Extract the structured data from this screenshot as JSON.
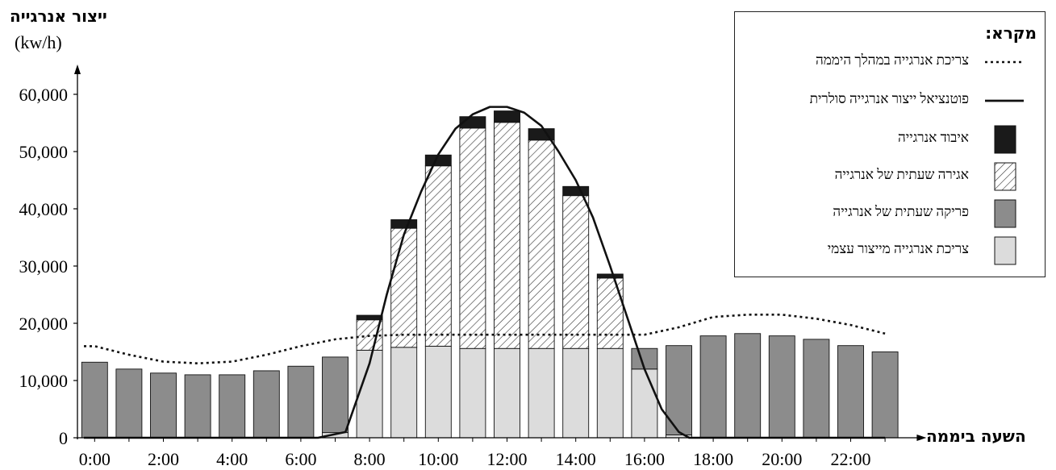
{
  "chart_data": {
    "type": "bar",
    "y_axis_title": "ייצור אנרגייה",
    "y_axis_unit": "(kw/h)",
    "x_axis_title": "השעה ביממה",
    "ylim": [
      0,
      60000
    ],
    "y_ticks": [
      "0",
      "10,000",
      "20,000",
      "30,000",
      "40,000",
      "50,000",
      "60,000"
    ],
    "x_ticks": [
      "0:00",
      "2:00",
      "4:00",
      "6:00",
      "8:00",
      "10:00",
      "12:00",
      "14:00",
      "16:00",
      "18:00",
      "20:00",
      "22:00"
    ],
    "hours": [
      0,
      1,
      2,
      3,
      4,
      5,
      6,
      7,
      8,
      9,
      10,
      11,
      12,
      13,
      14,
      15,
      16,
      17,
      18,
      19,
      20,
      21,
      22,
      23
    ],
    "series": [
      {
        "name": "צריכת אנרגייה מייצור עצמי",
        "values": [
          0,
          0,
          0,
          0,
          0,
          0,
          0,
          900,
          15300,
          15800,
          16000,
          15600,
          15600,
          15600,
          15600,
          15600,
          12000,
          500,
          0,
          0,
          0,
          0,
          0,
          0
        ]
      },
      {
        "name": "פריקה שעתית של אנרגייה",
        "values": [
          13200,
          12000,
          11300,
          11000,
          11000,
          11700,
          12500,
          13200,
          0,
          0,
          0,
          0,
          0,
          0,
          0,
          0,
          3600,
          15600,
          17800,
          18200,
          17800,
          17200,
          16100,
          15000
        ]
      },
      {
        "name": "אגירה שעתית של אנרגייה",
        "values": [
          0,
          0,
          0,
          0,
          0,
          0,
          0,
          0,
          5300,
          20800,
          31500,
          38500,
          39500,
          36400,
          26700,
          12300,
          0,
          0,
          0,
          0,
          0,
          0,
          0,
          0
        ]
      },
      {
        "name": "איבוד אנרגייה",
        "values": [
          0,
          0,
          0,
          0,
          0,
          0,
          0,
          0,
          800,
          1500,
          1900,
          2000,
          2000,
          2000,
          1600,
          700,
          0,
          0,
          0,
          0,
          0,
          0,
          0,
          0
        ]
      }
    ],
    "lines": [
      {
        "name": "צריכת אנרגייה במהלך היממה",
        "style": "dotted",
        "x": [
          0,
          1,
          2,
          3,
          4,
          5,
          6,
          7,
          8,
          9,
          10,
          11,
          12,
          13,
          14,
          15,
          16,
          17,
          18,
          19,
          20,
          21,
          22,
          23
        ],
        "y": [
          16000,
          14500,
          13300,
          13000,
          13300,
          14500,
          16000,
          17200,
          17800,
          18000,
          18000,
          18000,
          18000,
          18000,
          18000,
          18000,
          18000,
          19300,
          21100,
          21500,
          21500,
          20800,
          19700,
          18200
        ]
      },
      {
        "name": "פוטנציאל ייצור אנרגייה סולרית",
        "style": "solid",
        "x": [
          0,
          6.5,
          7.3,
          8,
          8.5,
          9,
          9.5,
          10,
          10.5,
          11,
          11.5,
          12,
          12.5,
          13,
          13.5,
          14,
          14.5,
          15,
          15.5,
          16,
          16.5,
          17,
          17.3,
          18,
          23
        ],
        "y": [
          0,
          0,
          1000,
          13000,
          25000,
          35500,
          43000,
          49500,
          54000,
          56500,
          57800,
          57800,
          56800,
          54500,
          50000,
          45000,
          38500,
          30000,
          21000,
          12000,
          5000,
          1000,
          0,
          0,
          0
        ]
      }
    ]
  },
  "legend": {
    "title": "מקרא:",
    "items": [
      {
        "label": "צריכת אנרגייה במהלך היממה",
        "type": "dotted-line"
      },
      {
        "label": "פוטנציאל ייצור אנרגייה סולרית",
        "type": "solid-line"
      },
      {
        "label": "איבוד אנרגייה",
        "type": "black-box",
        "color": "#1a1a1a"
      },
      {
        "label": "אגירה שעתית של אנרגייה",
        "type": "hatched-box",
        "color": "#ffffff"
      },
      {
        "label": "פריקה שעתית של אנרגייה",
        "type": "dark-gray-box",
        "color": "#8c8c8c"
      },
      {
        "label": "צריכת אנרגייה מייצור עצמי",
        "type": "light-gray-box",
        "color": "#dcdcdc"
      }
    ]
  },
  "colors": {
    "self": "#dcdcdc",
    "discharge": "#8c8c8c",
    "loss": "#1a1a1a",
    "axis": "#000000"
  }
}
